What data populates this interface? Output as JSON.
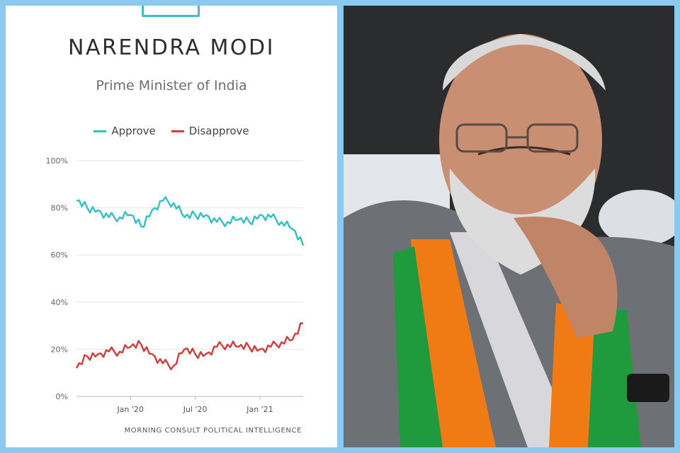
{
  "header": {
    "title": "NARENDRA MODI",
    "subtitle": "Prime Minister of India"
  },
  "legend": [
    {
      "label": "Approve",
      "color": "#2ec4c4"
    },
    {
      "label": "Disapprove",
      "color": "#d93a3a"
    }
  ],
  "source": "MORNING CONSULT POLITICAL INTELLIGENCE",
  "chart_data": {
    "type": "line",
    "title": "NARENDRA MODI",
    "subtitle": "Prime Minister of India",
    "xlabel": "",
    "ylabel": "",
    "ylim": [
      0,
      100
    ],
    "y_ticks": [
      "0%",
      "20%",
      "40%",
      "60%",
      "80%",
      "100%"
    ],
    "x_ticks": [
      "Jan '20",
      "Jul '20",
      "Jan '21"
    ],
    "grid": true,
    "legend_position": "top-center",
    "x": [
      "2019-08",
      "2019-09",
      "2019-10",
      "2019-11",
      "2019-12",
      "2020-01",
      "2020-02",
      "2020-03",
      "2020-04",
      "2020-05",
      "2020-06",
      "2020-07",
      "2020-08",
      "2020-09",
      "2020-10",
      "2020-11",
      "2020-12",
      "2021-01",
      "2021-02",
      "2021-03",
      "2021-04",
      "2021-05"
    ],
    "series": [
      {
        "name": "Approve",
        "color": "#2ec4c4",
        "values": [
          83,
          80,
          79,
          76,
          76,
          77,
          72,
          79,
          83,
          82,
          76,
          77,
          77,
          74,
          74,
          75,
          74,
          77,
          76,
          74,
          71,
          64
        ]
      },
      {
        "name": "Disapprove",
        "color": "#d93a3a",
        "values": [
          12,
          17,
          18,
          19,
          19,
          21,
          22,
          18,
          14,
          13,
          20,
          18,
          18,
          21,
          22,
          21,
          21,
          20,
          21,
          23,
          24,
          31
        ]
      }
    ]
  },
  "photo": {
    "subject": "portrait photograph"
  }
}
